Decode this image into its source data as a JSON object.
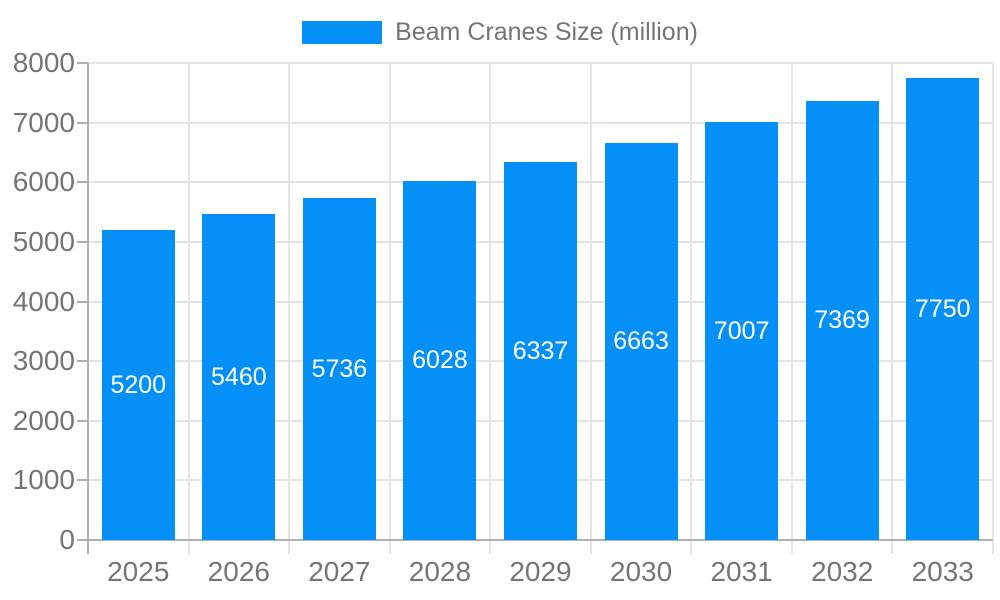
{
  "chart_data": {
    "type": "bar",
    "title": "",
    "legend": "Beam Cranes Size (million)",
    "categories": [
      "2025",
      "2026",
      "2027",
      "2028",
      "2029",
      "2030",
      "2031",
      "2032",
      "2033"
    ],
    "values": [
      5200,
      5460,
      5736,
      6028,
      6337,
      6663,
      7007,
      7369,
      7750
    ],
    "xlabel": "",
    "ylabel": "",
    "ylim": [
      0,
      8000
    ],
    "yticks": [
      0,
      1000,
      2000,
      3000,
      4000,
      5000,
      6000,
      7000,
      8000
    ],
    "grid": true,
    "legend_position": "top-center",
    "value_labels": "inside-center",
    "colors": {
      "bar": "#0590f8",
      "label_text": "#757575",
      "value_text": "#ffffff",
      "gridline": "#e4e4e4",
      "axis_line": "#b0b0b0",
      "background": "#ffffff"
    }
  }
}
